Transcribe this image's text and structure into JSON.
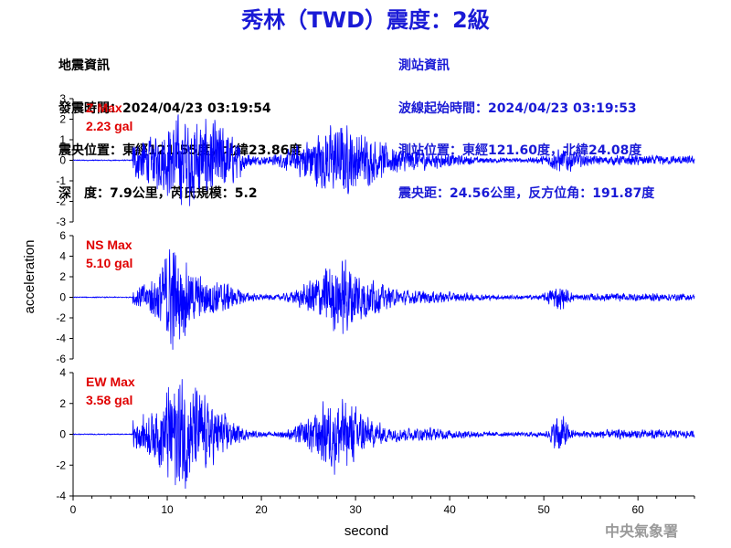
{
  "header": {
    "title": "秀林（TWD）震度：2級"
  },
  "quake_info": {
    "heading": "地震資訊",
    "origin_time": "發震時間：2024/04/23 03:19:54",
    "epicenter": "震央位置：東經121.55度，北緯23.86度",
    "depth_magnitude": "深　度：7.9公里，芮氏規模：5.2"
  },
  "station_info": {
    "heading": "測站資訊",
    "wave_start": "波線起始時間：2024/04/23 03:19:53",
    "location": "測站位置：東經121.60度，北緯24.08度",
    "distance": "震央距：24.56公里，反方位角：191.87度"
  },
  "watermark": "中央氣象署",
  "colors": {
    "trace": "#0000ff",
    "max_label": "#e00000",
    "title": "#1a1ad6"
  },
  "chart_data": {
    "type": "line",
    "xlabel": "second",
    "ylabel": "acceleration",
    "xlim": [
      0,
      66
    ],
    "xticks": [
      0,
      10,
      20,
      30,
      40,
      50,
      60
    ],
    "onset_seconds": 6.3,
    "panels": [
      {
        "name": "Z",
        "max_label": "Z Max",
        "max_value": "2.23 gal",
        "peak": 2.23,
        "ylim": [
          -3,
          3
        ],
        "yticks": [
          3,
          2,
          1,
          0,
          -1,
          -2,
          -3
        ]
      },
      {
        "name": "NS",
        "max_label": "NS Max",
        "max_value": "5.10 gal",
        "peak": 5.1,
        "ylim": [
          -6,
          6
        ],
        "yticks": [
          6,
          4,
          2,
          0,
          -2,
          -4,
          -6
        ]
      },
      {
        "name": "EW",
        "max_label": "EW Max",
        "max_value": "3.58 gal",
        "peak": 3.58,
        "ylim": [
          -4,
          4
        ],
        "yticks": [
          4,
          2,
          0,
          -2,
          -4
        ]
      }
    ]
  }
}
